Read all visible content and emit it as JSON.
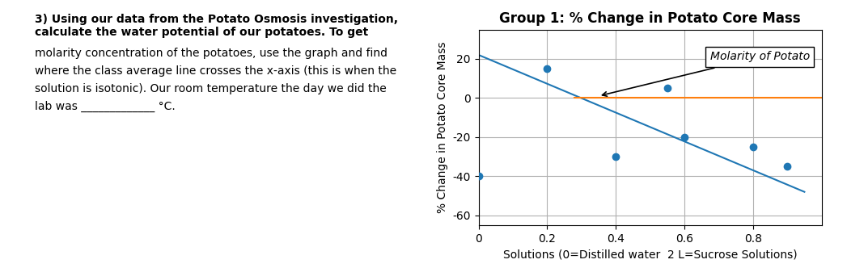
{
  "chart_data": {
    "type": "scatter",
    "title": "Group 1: % Change in Potato Core Mass",
    "x_label": "Solutions (0=Distilled water  2 L=Sucrose Solutions)",
    "y_label": "% Change in Potato Core Mass",
    "xlim": [
      0,
      1.0
    ],
    "ylim": [
      -65,
      35
    ],
    "xticks": [
      0,
      0.2,
      0.4,
      0.6,
      0.8
    ],
    "yticks": [
      -60,
      -40,
      -20,
      0,
      20
    ],
    "grid": true,
    "series": [
      {
        "type": "scatter",
        "x": [
          0.0,
          0.2,
          0.4,
          0.55,
          0.6,
          0.8,
          0.9
        ],
        "values": [
          -40,
          15,
          -30,
          5,
          -20,
          -25,
          -35
        ]
      },
      {
        "type": "line",
        "x": [
          0.0,
          0.95
        ],
        "values": [
          22,
          -48
        ]
      },
      {
        "type": "line",
        "x": [
          0.28,
          1.0
        ],
        "values": [
          0,
          0
        ]
      }
    ],
    "annotations": [
      "Molarity of Potato"
    ],
    "text_panel": {
      "heading": "3) Using our data from the Potato Osmosis investigation, calculate the water potential of our potatoes. To get",
      "lines": [
        "molarity concentration of the potatoes, use the graph and find",
        "where the class average line crosses the x-axis (this is when the",
        "solution is isotonic). Our room temperature the day we did the",
        "lab was _____________ °C."
      ]
    }
  }
}
